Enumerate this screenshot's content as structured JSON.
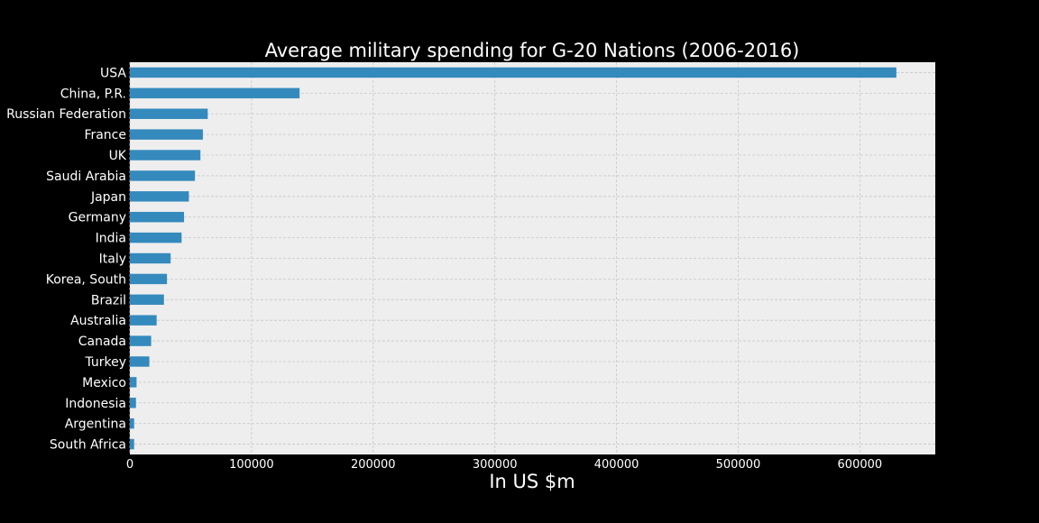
{
  "chart_data": {
    "type": "bar",
    "orientation": "horizontal",
    "title": "Average military spending for G-20 Nations (2006-2016)",
    "xlabel": "In US $m",
    "ylabel": "",
    "xlim": [
      0,
      662000
    ],
    "xticks": [
      0,
      100000,
      200000,
      300000,
      400000,
      500000,
      600000
    ],
    "xtick_labels": [
      "0",
      "100000",
      "200000",
      "300000",
      "400000",
      "500000",
      "600000"
    ],
    "grid": true,
    "categories": [
      "USA",
      "China, P.R.",
      "Russian Federation",
      "France",
      "UK",
      "Saudi Arabia",
      "Japan",
      "Germany",
      "India",
      "Italy",
      "Korea, South",
      "Brazil",
      "Australia",
      "Canada",
      "Turkey",
      "Mexico",
      "Indonesia",
      "Argentina",
      "South Africa"
    ],
    "values": [
      630000,
      139500,
      64000,
      60000,
      58000,
      53500,
      48500,
      44500,
      42500,
      33500,
      30500,
      28000,
      22000,
      17500,
      16000,
      5500,
      5000,
      3500,
      3500
    ],
    "colors": {
      "background": "#000000",
      "plot_background": "#eeeeee",
      "bar": "#348abd",
      "grid": "#c8c8c8",
      "text": "#ffffff"
    }
  }
}
